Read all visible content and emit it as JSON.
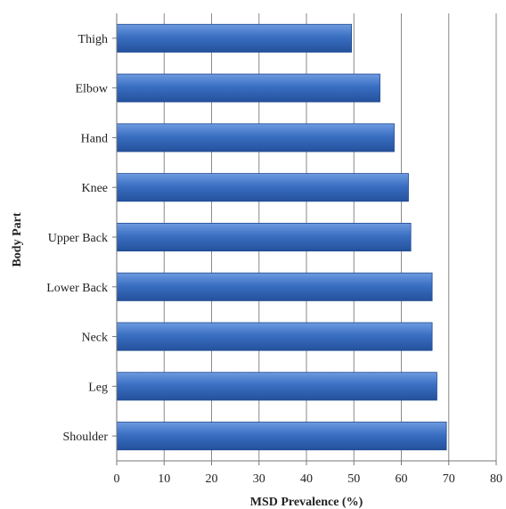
{
  "chart_data": {
    "type": "bar",
    "orientation": "horizontal",
    "categories": [
      "Thigh",
      "Elbow",
      "Hand",
      "Knee",
      "Upper Back",
      "Lower Back",
      "Neck",
      "Leg",
      "Shoulder"
    ],
    "values": [
      49.5,
      55.5,
      58.5,
      61.5,
      62,
      66.5,
      66.5,
      67.5,
      69.5
    ],
    "title": "",
    "xlabel": "MSD Prevalence (%)",
    "ylabel": "Body Part",
    "xlim": [
      0,
      80
    ],
    "xticks": [
      0,
      10,
      20,
      30,
      40,
      50,
      60,
      70,
      80
    ],
    "grid": "vertical",
    "legend": "none",
    "bar_color": "#3a6fc2",
    "bar_edge_color": "#1f4a8f"
  }
}
